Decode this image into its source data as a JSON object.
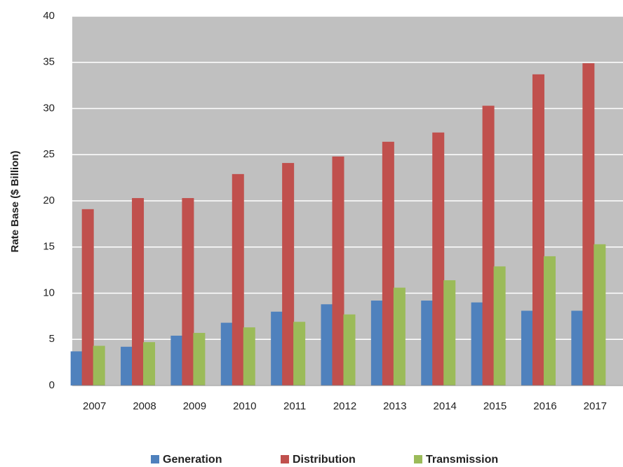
{
  "chart_data": {
    "type": "bar",
    "y_label": "Rate Base ($ Billion)",
    "categories": [
      "2007",
      "2008",
      "2009",
      "2010",
      "2011",
      "2012",
      "2013",
      "2014",
      "2015",
      "2016",
      "2017"
    ],
    "series": [
      {
        "name": "Generation",
        "color": "#4f81bd",
        "values": [
          3.7,
          4.2,
          5.4,
          6.8,
          8.0,
          8.8,
          9.2,
          9.2,
          9.0,
          8.1,
          8.1
        ]
      },
      {
        "name": "Distribution",
        "color": "#c0504d",
        "values": [
          19.1,
          20.3,
          20.3,
          22.9,
          24.1,
          24.8,
          26.4,
          27.4,
          30.3,
          33.7,
          34.9
        ]
      },
      {
        "name": "Transmission",
        "color": "#9bbb59",
        "values": [
          4.3,
          4.7,
          5.7,
          6.3,
          6.9,
          7.7,
          10.6,
          11.4,
          12.9,
          14.0,
          15.3
        ]
      }
    ],
    "ylim": [
      0,
      40
    ],
    "yticks": [
      0,
      5,
      10,
      15,
      20,
      25,
      30,
      35,
      40
    ],
    "grid": true,
    "plot_background": "#c0c0c0",
    "legend": "bottom"
  }
}
